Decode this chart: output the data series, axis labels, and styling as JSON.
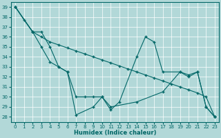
{
  "xlabel": "Humidex (Indice chaleur)",
  "background_color": "#b2d8d8",
  "grid_color": "#ffffff",
  "line_color": "#006666",
  "ylim": [
    27.5,
    39.5
  ],
  "xlim": [
    -0.5,
    23.5
  ],
  "yticks": [
    28,
    29,
    30,
    31,
    32,
    33,
    34,
    35,
    36,
    37,
    38,
    39
  ],
  "xticks": [
    0,
    1,
    2,
    3,
    4,
    5,
    6,
    7,
    8,
    9,
    10,
    11,
    12,
    13,
    14,
    15,
    16,
    17,
    18,
    19,
    20,
    21,
    22,
    23
  ],
  "line1_x": [
    0,
    2,
    3,
    4,
    5,
    6,
    7,
    8,
    9,
    10,
    11,
    14,
    17,
    19,
    20,
    21,
    22,
    23
  ],
  "line1_y": [
    39.0,
    36.5,
    36.5,
    35.0,
    33.0,
    32.5,
    30.0,
    30.0,
    30.0,
    30.0,
    29.0,
    29.5,
    30.5,
    32.5,
    32.2,
    32.5,
    29.0,
    28.0
  ],
  "line2_x": [
    0,
    1,
    2,
    3,
    4,
    5,
    6,
    7,
    8,
    9,
    10,
    11,
    12,
    13,
    14,
    15,
    16,
    17,
    18,
    19,
    20,
    21,
    22,
    23
  ],
  "line2_y": [
    39.0,
    37.7,
    36.5,
    36.0,
    35.5,
    35.2,
    34.9,
    34.6,
    34.3,
    34.0,
    33.7,
    33.4,
    33.1,
    32.8,
    32.5,
    32.2,
    31.9,
    31.6,
    31.3,
    31.0,
    30.7,
    30.4,
    30.0,
    28.0
  ],
  "line3_x": [
    0,
    2,
    3,
    4,
    5,
    6,
    7,
    9,
    10,
    11,
    12,
    14,
    15,
    16,
    17,
    19,
    20,
    21,
    22,
    23
  ],
  "line3_y": [
    39.0,
    36.5,
    35.0,
    33.5,
    33.0,
    32.5,
    28.2,
    29.0,
    30.0,
    28.7,
    29.5,
    34.0,
    36.0,
    35.5,
    32.5,
    32.5,
    32.0,
    32.5,
    29.0,
    28.0
  ]
}
